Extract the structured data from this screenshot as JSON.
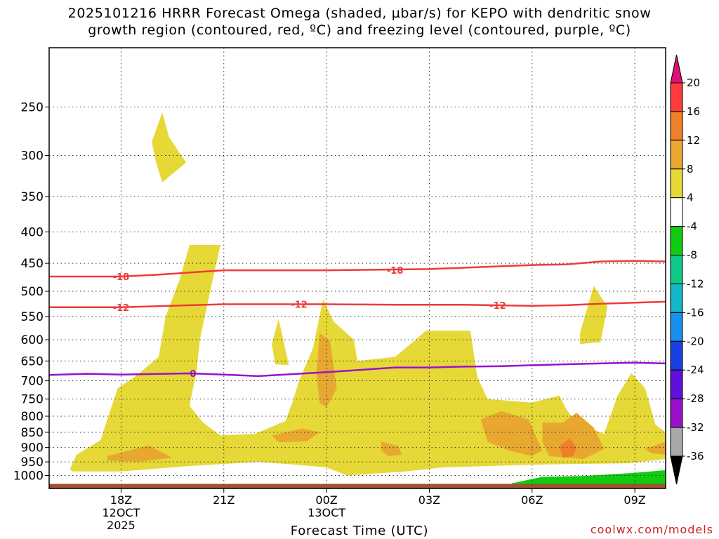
{
  "chart_data": {
    "type": "heatmap",
    "title_line1": "2025101216 HRRR Forecast Omega (shaded, µbar/s) for KEPO with dendritic snow",
    "title_line2": "growth region (contoured, red, ºC) and freezing level (contoured, purple, ºC)",
    "xlabel": "Forecast Time (UTC)",
    "credit": "coolwx.com/models",
    "y_axis": {
      "scale": "log",
      "direction": "inverted",
      "range": [
        200,
        1050
      ],
      "ticks": [
        "250",
        "300",
        "350",
        "400",
        "450",
        "500",
        "550",
        "600",
        "650",
        "700",
        "750",
        "800",
        "850",
        "900",
        "950",
        "1000"
      ],
      "tick_values": [
        250,
        300,
        350,
        400,
        450,
        500,
        550,
        600,
        650,
        700,
        750,
        800,
        850,
        900,
        950,
        1000
      ],
      "grid": "dotted"
    },
    "x_axis": {
      "unit": "hours",
      "range": [
        15.9,
        33.9
      ],
      "ticks": [
        {
          "value": 18,
          "label1": "18Z",
          "label2": "12OCT",
          "label3": "2025"
        },
        {
          "value": 21,
          "label1": "21Z",
          "label2": "",
          "label3": ""
        },
        {
          "value": 24,
          "label1": "00Z",
          "label2": "13OCT",
          "label3": ""
        },
        {
          "value": 27,
          "label1": "03Z",
          "label2": "",
          "label3": ""
        },
        {
          "value": 30,
          "label1": "06Z",
          "label2": "",
          "label3": ""
        },
        {
          "value": 33,
          "label1": "09Z",
          "label2": "",
          "label3": ""
        }
      ],
      "grid": "dotted"
    },
    "colorbar": {
      "labels": [
        "20",
        "16",
        "12",
        "8",
        "4",
        "-4",
        "-8",
        "-12",
        "-16",
        "-20",
        "-24",
        "-28",
        "-32",
        "-36"
      ],
      "colors": [
        "#ff3b3b",
        "#ef7f28",
        "#e8a830",
        "#e6d836",
        "#ffffff",
        "#10cc10",
        "#10c888",
        "#10b8c8",
        "#1890ee",
        "#1840e0",
        "#6010d8",
        "#9a10c8",
        "#a8a8a8"
      ],
      "top_triangle_color": "#dd1177",
      "bottom_triangle_color": "#000000"
    },
    "series": [
      {
        "name": "-18",
        "color": "#ee3b3b",
        "points": [
          [
            15.9,
            473
          ],
          [
            18,
            473
          ],
          [
            19,
            470
          ],
          [
            21,
            462
          ],
          [
            24,
            462
          ],
          [
            27,
            460
          ],
          [
            30,
            453
          ],
          [
            31,
            452
          ],
          [
            32,
            447
          ],
          [
            33,
            446
          ],
          [
            33.9,
            447
          ]
        ],
        "labels": [
          [
            18,
            473
          ],
          [
            26,
            462
          ]
        ]
      },
      {
        "name": "-12",
        "color": "#ee3b3b",
        "points": [
          [
            15.9,
            531
          ],
          [
            18,
            531
          ],
          [
            21,
            525
          ],
          [
            24,
            525
          ],
          [
            26,
            526
          ],
          [
            28,
            526
          ],
          [
            30,
            528
          ],
          [
            31,
            527
          ],
          [
            32,
            524
          ],
          [
            33.9,
            520
          ]
        ],
        "labels": [
          [
            18,
            531
          ],
          [
            23.2,
            525
          ],
          [
            29,
            527
          ]
        ]
      },
      {
        "name": "0",
        "color": "#9911cc",
        "points": [
          [
            15.9,
            685
          ],
          [
            17,
            682
          ],
          [
            18,
            684
          ],
          [
            20,
            681
          ],
          [
            21,
            684
          ],
          [
            22,
            688
          ],
          [
            24,
            678
          ],
          [
            25,
            672
          ],
          [
            26,
            666
          ],
          [
            27,
            666
          ],
          [
            28,
            664
          ],
          [
            29,
            663
          ],
          [
            31,
            658
          ],
          [
            33,
            654
          ],
          [
            33.9,
            656
          ]
        ],
        "labels": [
          [
            20.1,
            681
          ]
        ]
      }
    ],
    "omega_shaded": [
      {
        "level": "4 to 8",
        "color": "#e6d836",
        "polygon": [
          [
            19.2,
            255
          ],
          [
            19.4,
            280
          ],
          [
            19.9,
            308
          ],
          [
            19.6,
            318
          ],
          [
            19.2,
            332
          ],
          [
            19.0,
            305
          ],
          [
            18.9,
            285
          ]
        ]
      },
      {
        "level": "4 to 8",
        "color": "#e6d836",
        "polygon": [
          [
            16.5,
            978
          ],
          [
            16.7,
            925
          ],
          [
            17.4,
            875
          ],
          [
            17.6,
            810
          ],
          [
            17.9,
            720
          ],
          [
            18.4,
            690
          ],
          [
            19.1,
            640
          ],
          [
            19.3,
            550
          ],
          [
            19.7,
            480
          ],
          [
            20,
            420
          ],
          [
            20.9,
            420
          ],
          [
            20.6,
            500
          ],
          [
            20.3,
            600
          ],
          [
            20.2,
            680
          ],
          [
            20.1,
            720
          ],
          [
            20.0,
            770
          ],
          [
            20.4,
            820
          ],
          [
            20.9,
            860
          ],
          [
            21.9,
            855
          ],
          [
            22.8,
            815
          ],
          [
            23.0,
            760
          ],
          [
            23.2,
            700
          ],
          [
            23.6,
            620
          ],
          [
            23.9,
            515
          ],
          [
            24.2,
            560
          ],
          [
            24.8,
            600
          ],
          [
            24.9,
            650
          ],
          [
            26.0,
            640
          ],
          [
            26.6,
            600
          ],
          [
            26.9,
            580
          ],
          [
            28.2,
            580
          ],
          [
            28.4,
            690
          ],
          [
            28.7,
            750
          ],
          [
            30.0,
            760
          ],
          [
            30.8,
            740
          ],
          [
            31.0,
            780
          ],
          [
            31.3,
            820
          ],
          [
            32.1,
            855
          ],
          [
            32.5,
            740
          ],
          [
            32.9,
            680
          ],
          [
            33.3,
            720
          ],
          [
            33.6,
            825
          ],
          [
            33.9,
            850
          ],
          [
            33.9,
            940
          ],
          [
            32.8,
            955
          ],
          [
            30.0,
            960
          ],
          [
            27.4,
            970
          ],
          [
            26.3,
            985
          ],
          [
            24.6,
            1000
          ],
          [
            24.0,
            970
          ],
          [
            23.1,
            960
          ],
          [
            22.0,
            950
          ],
          [
            20.0,
            965
          ],
          [
            18.0,
            985
          ],
          [
            16.6,
            985
          ]
        ]
      },
      {
        "level": "4 to 8",
        "color": "#e6d836",
        "polygon": [
          [
            22.6,
            555
          ],
          [
            22.9,
            660
          ],
          [
            22.5,
            658
          ],
          [
            22.4,
            610
          ]
        ]
      },
      {
        "level": "4 to 8",
        "color": "#e6d836",
        "polygon": [
          [
            31.8,
            490
          ],
          [
            32.2,
            530
          ],
          [
            32.0,
            605
          ],
          [
            31.4,
            610
          ],
          [
            31.4,
            585
          ],
          [
            31.5,
            560
          ]
        ]
      },
      {
        "level": "8 to 12",
        "color": "#e8a830",
        "polygon": [
          [
            17.6,
            930
          ],
          [
            18.8,
            893
          ],
          [
            19.5,
            935
          ],
          [
            18.5,
            950
          ],
          [
            17.6,
            945
          ]
        ]
      },
      {
        "level": "8 to 12",
        "color": "#e8a830",
        "polygon": [
          [
            22.4,
            860
          ],
          [
            23.3,
            838
          ],
          [
            23.8,
            850
          ],
          [
            23.4,
            880
          ],
          [
            22.6,
            882
          ]
        ]
      },
      {
        "level": "8 to 12",
        "color": "#e8a830",
        "polygon": [
          [
            23.8,
            585
          ],
          [
            24.1,
            603
          ],
          [
            24.3,
            720
          ],
          [
            24.0,
            775
          ],
          [
            23.8,
            760
          ],
          [
            23.7,
            680
          ]
        ]
      },
      {
        "level": "8 to 12",
        "color": "#e8a830",
        "polygon": [
          [
            25.6,
            880
          ],
          [
            26.1,
            895
          ],
          [
            26.2,
            925
          ],
          [
            25.8,
            930
          ],
          [
            25.6,
            910
          ]
        ]
      },
      {
        "level": "8 to 12",
        "color": "#e8a830",
        "polygon": [
          [
            28.5,
            810
          ],
          [
            29.1,
            785
          ],
          [
            29.9,
            810
          ],
          [
            30.3,
            910
          ],
          [
            30.0,
            930
          ],
          [
            29.3,
            910
          ],
          [
            28.7,
            880
          ]
        ]
      },
      {
        "level": "8 to 12",
        "color": "#e8a830",
        "polygon": [
          [
            30.3,
            820
          ],
          [
            30.9,
            820
          ],
          [
            31.3,
            790
          ],
          [
            31.8,
            835
          ],
          [
            32.1,
            905
          ],
          [
            31.5,
            940
          ],
          [
            30.5,
            930
          ],
          [
            30.3,
            880
          ]
        ]
      },
      {
        "level": "8 to 12",
        "color": "#e8a830",
        "polygon": [
          [
            33.3,
            905
          ],
          [
            33.9,
            880
          ],
          [
            33.9,
            925
          ],
          [
            33.5,
            920
          ]
        ]
      },
      {
        "level": "12 to 16",
        "color": "#ef7f28",
        "polygon": [
          [
            30.8,
            895
          ],
          [
            31.1,
            870
          ],
          [
            31.3,
            900
          ],
          [
            31.2,
            930
          ],
          [
            30.9,
            935
          ]
        ]
      }
    ],
    "omega_negative": [
      {
        "level": "-4 to -8",
        "color": "#10cc10",
        "polygon": [
          [
            29.4,
            1030
          ],
          [
            30.3,
            1005
          ],
          [
            31.5,
            1002
          ],
          [
            33.0,
            990
          ],
          [
            33.9,
            980
          ],
          [
            33.9,
            1035
          ],
          [
            31.0,
            1040
          ],
          [
            29.5,
            1038
          ]
        ]
      }
    ],
    "surface_color": "#a0522d"
  }
}
